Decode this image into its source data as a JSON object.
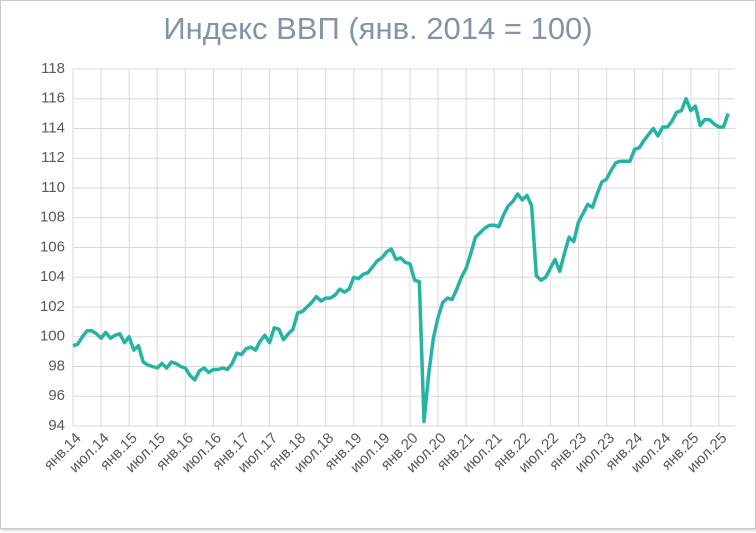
{
  "chart_data": {
    "type": "line",
    "title": "Индекс ВВП (янв. 2014 = 100)",
    "categories": [
      "янв.14",
      null,
      null,
      null,
      null,
      null,
      "июл.14",
      null,
      null,
      null,
      null,
      null,
      "янв.15",
      null,
      null,
      null,
      null,
      null,
      "июл.15",
      null,
      null,
      null,
      null,
      null,
      "янв.16",
      null,
      null,
      null,
      null,
      null,
      "июл.16",
      null,
      null,
      null,
      null,
      null,
      "янв.17",
      null,
      null,
      null,
      null,
      null,
      "июл.17",
      null,
      null,
      null,
      null,
      null,
      "янв.18",
      null,
      null,
      null,
      null,
      null,
      "июл.18",
      null,
      null,
      null,
      null,
      null,
      "янв.19",
      null,
      null,
      null,
      null,
      null,
      "июл.19",
      null,
      null,
      null,
      null,
      null,
      "янв.20",
      null,
      null,
      null,
      null,
      null,
      "июл.20",
      null,
      null,
      null,
      null,
      null,
      "янв.21",
      null,
      null,
      null,
      null,
      null,
      "июл.21",
      null,
      null,
      null,
      null,
      null,
      "янв.22",
      null,
      null,
      null,
      null,
      null,
      "июл.22",
      null,
      null,
      null,
      null,
      null,
      "янв.23",
      null,
      null,
      null,
      null,
      null,
      "июл.23",
      null,
      null,
      null,
      null,
      null,
      "янв.24",
      null,
      null,
      null,
      null,
      null,
      "июл.24",
      null,
      null,
      null,
      null,
      null,
      "янв.25",
      null,
      null,
      null,
      null,
      null,
      "июл.25",
      null,
      null
    ],
    "series": [
      {
        "color": "#26b3a4",
        "values": [
          99.4,
          99.5,
          100.0,
          100.4,
          100.4,
          100.2,
          99.9,
          100.3,
          99.9,
          100.1,
          100.2,
          99.6,
          100.0,
          99.1,
          99.4,
          98.3,
          98.1,
          98.0,
          97.9,
          98.2,
          97.9,
          98.3,
          98.2,
          98.0,
          97.9,
          97.4,
          97.1,
          97.7,
          97.9,
          97.6,
          97.8,
          97.8,
          97.9,
          97.8,
          98.2,
          98.9,
          98.8,
          99.2,
          99.3,
          99.1,
          99.7,
          100.1,
          99.6,
          100.6,
          100.5,
          99.8,
          100.2,
          100.5,
          101.6,
          101.7,
          102.0,
          102.3,
          102.7,
          102.4,
          102.6,
          102.6,
          102.8,
          103.2,
          103.0,
          103.2,
          104.0,
          103.9,
          104.2,
          104.3,
          104.7,
          105.1,
          105.3,
          105.7,
          105.9,
          105.2,
          105.3,
          105.0,
          104.9,
          103.8,
          103.7,
          94.3,
          97.5,
          99.9,
          101.3,
          102.3,
          102.6,
          102.5,
          103.2,
          104.0,
          104.6,
          105.6,
          106.7,
          107.0,
          107.3,
          107.5,
          107.5,
          107.4,
          108.2,
          108.8,
          109.1,
          109.6,
          109.2,
          109.5,
          108.8,
          104.1,
          103.8,
          104.0,
          104.6,
          105.2,
          104.4,
          105.6,
          106.7,
          106.4,
          107.7,
          108.3,
          108.9,
          108.7,
          109.6,
          110.4,
          110.6,
          111.2,
          111.7,
          111.8,
          111.8,
          111.8,
          112.6,
          112.7,
          113.2,
          113.6,
          114.0,
          113.5,
          114.1,
          114.1,
          114.5,
          115.1,
          115.2,
          116.0,
          115.2,
          115.5,
          114.2,
          114.6,
          114.6,
          114.3,
          114.1,
          114.1,
          115.0
        ]
      }
    ],
    "ylim": [
      94,
      118
    ],
    "yticks": [
      94,
      96,
      98,
      100,
      102,
      104,
      106,
      108,
      110,
      112,
      114,
      116,
      118
    ],
    "grid": true
  }
}
